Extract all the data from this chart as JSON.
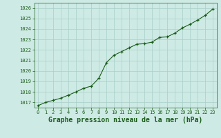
{
  "x": [
    0,
    1,
    2,
    3,
    4,
    5,
    6,
    7,
    8,
    9,
    10,
    11,
    12,
    13,
    14,
    15,
    16,
    17,
    18,
    19,
    20,
    21,
    22,
    23
  ],
  "y": [
    1016.7,
    1017.0,
    1017.2,
    1017.4,
    1017.7,
    1018.0,
    1018.35,
    1018.55,
    1019.3,
    1020.8,
    1021.5,
    1021.85,
    1022.2,
    1022.55,
    1022.6,
    1022.75,
    1023.2,
    1023.25,
    1023.6,
    1024.1,
    1024.45,
    1024.85,
    1025.3,
    1025.9
  ],
  "ylim": [
    1016.5,
    1026.5
  ],
  "yticks": [
    1017,
    1018,
    1019,
    1020,
    1021,
    1022,
    1023,
    1024,
    1025,
    1026
  ],
  "xticks": [
    0,
    1,
    2,
    3,
    4,
    5,
    6,
    7,
    8,
    9,
    10,
    11,
    12,
    13,
    14,
    15,
    16,
    17,
    18,
    19,
    20,
    21,
    22,
    23
  ],
  "xlabel": "Graphe pression niveau de la mer (hPa)",
  "line_color": "#1a5c1a",
  "marker_color": "#1a5c1a",
  "bg_color": "#ceeae4",
  "grid_color": "#a8cec8",
  "tick_label_color": "#1a5c1a",
  "xlabel_color": "#1a5c1a",
  "tick_fontsize": 5.0,
  "xlabel_fontsize": 7.0,
  "line_width": 0.8,
  "marker_size": 3.0
}
